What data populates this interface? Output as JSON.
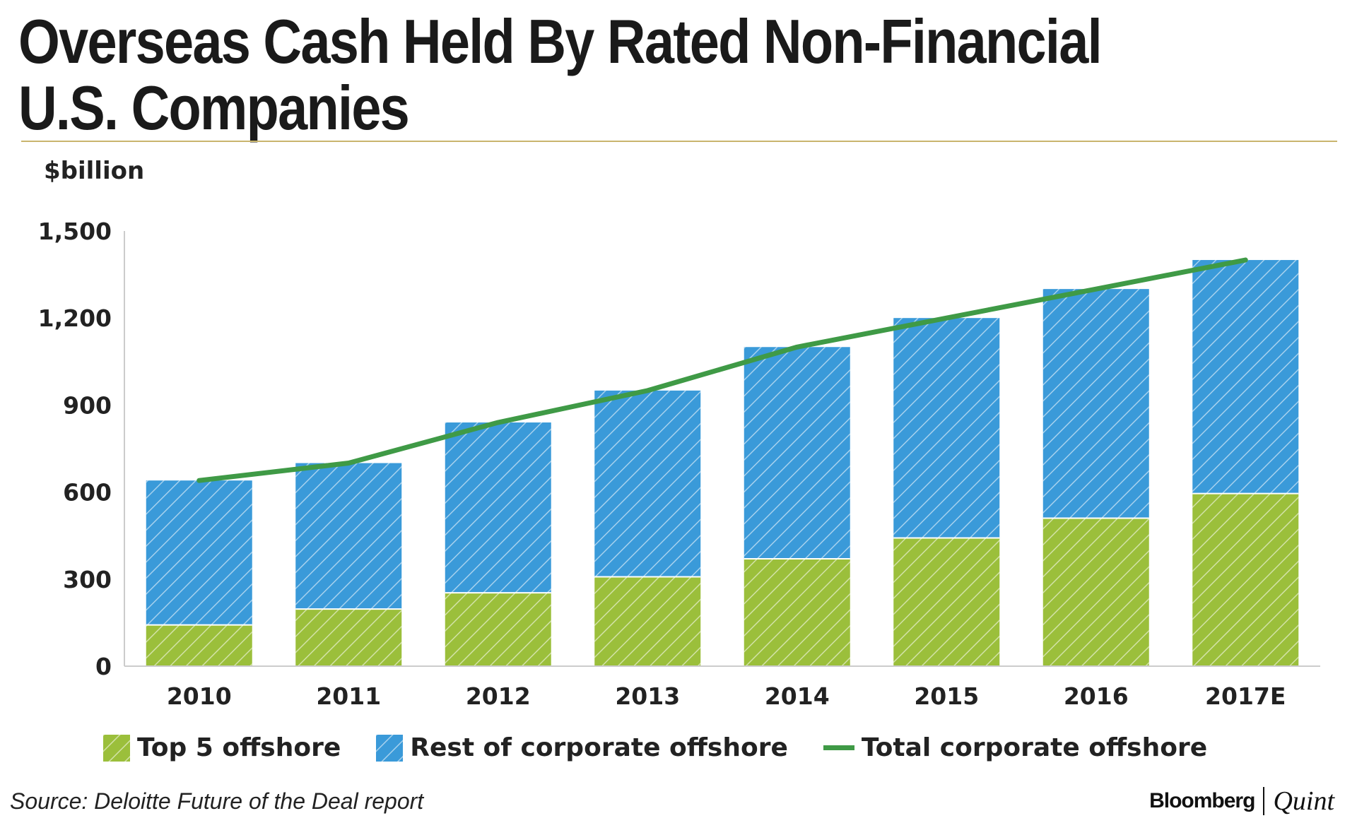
{
  "header": {
    "title": "Overseas Cash Held By Rated Non-Financial U.S. Companies",
    "unit_label": "$billion"
  },
  "colors": {
    "top5": "#9bbf3b",
    "rest": "#3a9ad9",
    "total_line": "#3f9a46",
    "axis": "#cccccc",
    "rule": "#c9b56e"
  },
  "chart_data": {
    "type": "bar",
    "stacked": true,
    "categories": [
      "2010",
      "2011",
      "2012",
      "2013",
      "2014",
      "2015",
      "2016",
      "2017E"
    ],
    "series": [
      {
        "name": "Top 5 offshore",
        "type": "bar",
        "values": [
          142,
          197,
          253,
          308,
          370,
          442,
          510,
          595
        ]
      },
      {
        "name": "Rest of corporate offshore",
        "type": "bar",
        "values": [
          498,
          503,
          587,
          642,
          730,
          758,
          790,
          805
        ]
      },
      {
        "name": "Total corporate offshore",
        "type": "line",
        "values": [
          640,
          700,
          840,
          950,
          1100,
          1200,
          1300,
          1400
        ]
      }
    ],
    "yticks": [
      "0",
      "300",
      "600",
      "900",
      "1,200",
      "1,500"
    ],
    "ytick_values": [
      0,
      300,
      600,
      900,
      1200,
      1500
    ],
    "ylim": [
      0,
      1500
    ],
    "ylabel": "$billion",
    "xlabel": "",
    "legend_position": "bottom"
  },
  "legend": {
    "items": [
      {
        "label": "Top 5 offshore"
      },
      {
        "label": "Rest of corporate offshore"
      },
      {
        "label": "Total corporate offshore"
      }
    ]
  },
  "footer": {
    "source": "Source: Deloitte Future of the Deal report",
    "brand_main": "Bloomberg",
    "brand_sub": "Quint"
  }
}
